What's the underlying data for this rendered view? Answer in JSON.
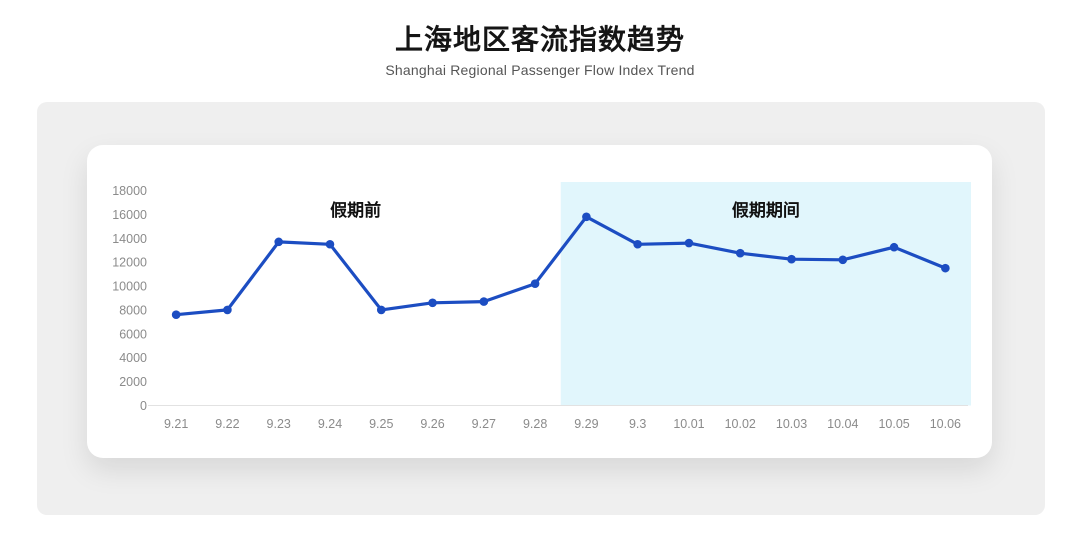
{
  "page": {
    "title": "上海地区客流指数趋势",
    "subtitle": "Shanghai Regional Passenger Flow Index Trend"
  },
  "chart_data": {
    "type": "line",
    "title": "上海地区客流指数趋势",
    "subtitle": "Shanghai Regional Passenger Flow Index Trend",
    "categories": [
      "9.21",
      "9.22",
      "9.23",
      "9.24",
      "9.25",
      "9.26",
      "9.27",
      "9.28",
      "9.29",
      "9.3",
      "10.01",
      "10.02",
      "10.03",
      "10.04",
      "10.05",
      "10.06"
    ],
    "values": [
      7600,
      8000,
      13700,
      13500,
      8000,
      8600,
      8700,
      10200,
      15800,
      13500,
      13600,
      12750,
      12250,
      12200,
      13250,
      11500
    ],
    "ylim": [
      0,
      18000
    ],
    "y_ticks": [
      0,
      2000,
      4000,
      6000,
      8000,
      10000,
      12000,
      14000,
      16000,
      18000
    ],
    "grid": false,
    "legend": "none",
    "line_color": "#1c4dc2",
    "marker": "circle",
    "axis_line_color": "#e2e2e2",
    "tick_label_color": "#8b8b8b",
    "regions": [
      {
        "label": "假期前",
        "start": "9.21",
        "end": "9.28",
        "shaded": false,
        "fill": "none"
      },
      {
        "label": "假期期间",
        "start": "9.29",
        "end": "10.06",
        "shaded": true,
        "fill": "#e1f6fc"
      }
    ]
  }
}
